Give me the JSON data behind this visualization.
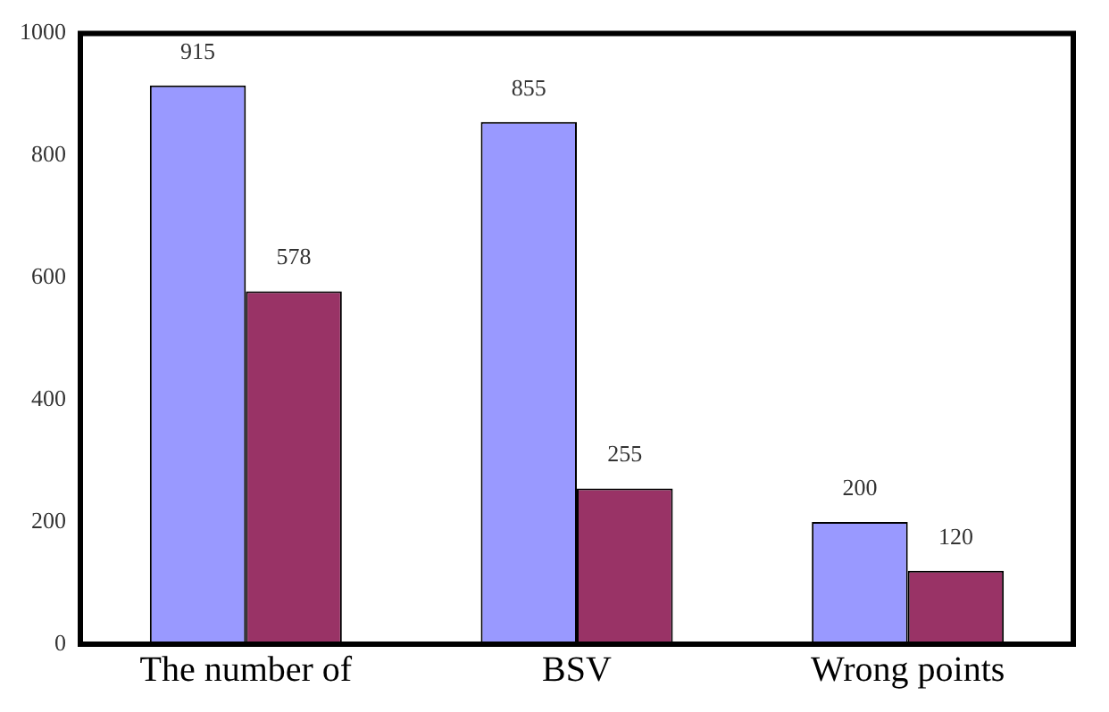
{
  "chart_data": {
    "type": "bar",
    "categories": [
      "The number of",
      "BSV",
      "Wrong points"
    ],
    "series": [
      {
        "color": "#9999ff",
        "values": [
          915,
          855,
          200
        ]
      },
      {
        "color": "#993366",
        "values": [
          578,
          255,
          120
        ]
      }
    ],
    "ylim": [
      0,
      1000
    ],
    "yticks": [
      0,
      200,
      400,
      600,
      800,
      1000
    ],
    "grid": false,
    "legend": false,
    "data_labels": true
  }
}
